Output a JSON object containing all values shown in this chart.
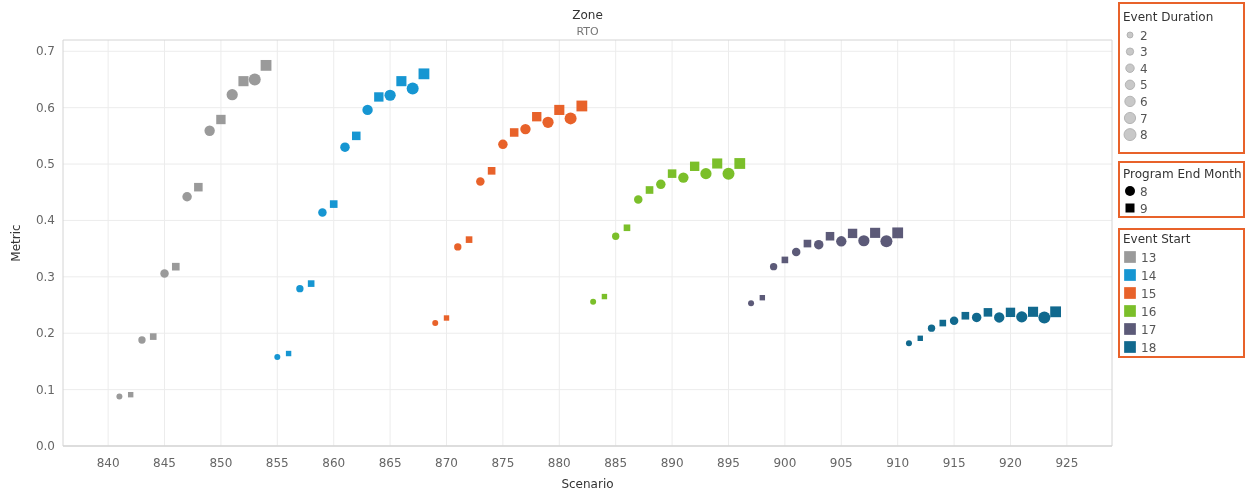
{
  "chart_data": {
    "type": "bubble",
    "title": "Zone",
    "subtitle": "RTO",
    "xlabel": "Scenario",
    "ylabel": "Metric",
    "legend_title": "Event Start",
    "annotations": [
      "Event Duration",
      "Program End Month",
      "8",
      "9"
    ],
    "xlim": [
      836,
      929
    ],
    "ylim": [
      0,
      0.72
    ],
    "xticks": [
      840,
      845,
      850,
      855,
      860,
      865,
      870,
      875,
      880,
      885,
      890,
      895,
      900,
      905,
      910,
      915,
      920,
      925
    ],
    "yticks": [
      {
        "value": 0,
        "label": "0.0"
      },
      0.1,
      0.2,
      0.3,
      0.4,
      0.5,
      0.6,
      0.7
    ],
    "grid": true,
    "legend": "right",
    "size_legend": [
      2,
      3,
      4,
      5,
      6,
      7,
      8
    ],
    "series": [
      {
        "color": "#9a9a9a",
        "marker": "circle",
        "x": [
          841,
          843,
          845,
          847,
          849,
          851,
          853
        ],
        "values": [
          0.088,
          0.188,
          0.306,
          0.442,
          0.559,
          0.623,
          0.65
        ],
        "sizes": [
          2,
          3,
          4,
          5,
          6,
          7,
          8
        ]
      },
      {
        "name": "13",
        "color": "#9a9a9a",
        "marker": "square",
        "x": [
          842,
          844,
          846,
          848,
          850,
          852,
          854
        ],
        "values": [
          0.091,
          0.194,
          0.318,
          0.459,
          0.579,
          0.647,
          0.675
        ],
        "sizes": [
          2,
          3,
          4,
          5,
          6,
          7,
          8
        ]
      },
      {
        "color": "#1696d2",
        "marker": "circle",
        "x": [
          855,
          857,
          859,
          861,
          863,
          865,
          867
        ],
        "values": [
          0.158,
          0.279,
          0.414,
          0.53,
          0.596,
          0.622,
          0.634
        ],
        "sizes": [
          2,
          3,
          4,
          5,
          6,
          7,
          8
        ]
      },
      {
        "name": "14",
        "color": "#1696d2",
        "marker": "square",
        "x": [
          856,
          858,
          860,
          862,
          864,
          866,
          868
        ],
        "values": [
          0.164,
          0.288,
          0.429,
          0.55,
          0.619,
          0.647,
          0.66
        ],
        "sizes": [
          2,
          3,
          4,
          5,
          6,
          7,
          8
        ]
      },
      {
        "color": "#e8622a",
        "marker": "circle",
        "x": [
          869,
          871,
          873,
          875,
          877,
          879,
          881
        ],
        "values": [
          0.218,
          0.353,
          0.469,
          0.535,
          0.562,
          0.574,
          0.581
        ],
        "sizes": [
          2,
          3,
          4,
          5,
          6,
          7,
          8
        ]
      },
      {
        "name": "15",
        "color": "#e8622a",
        "marker": "square",
        "x": [
          870,
          872,
          874,
          876,
          878,
          880,
          882
        ],
        "values": [
          0.227,
          0.366,
          0.488,
          0.556,
          0.584,
          0.596,
          0.603
        ],
        "sizes": [
          2,
          3,
          4,
          5,
          6,
          7,
          8
        ]
      },
      {
        "color": "#7bbf2a",
        "marker": "circle",
        "x": [
          883,
          885,
          887,
          889,
          891,
          893,
          895
        ],
        "values": [
          0.256,
          0.372,
          0.437,
          0.464,
          0.476,
          0.483,
          0.483
        ],
        "sizes": [
          2,
          3,
          4,
          5,
          6,
          7,
          8
        ]
      },
      {
        "name": "16",
        "color": "#7bbf2a",
        "marker": "square",
        "x": [
          884,
          886,
          888,
          890,
          892,
          894,
          896
        ],
        "values": [
          0.265,
          0.387,
          0.454,
          0.483,
          0.496,
          0.501,
          0.501
        ],
        "sizes": [
          2,
          3,
          4,
          5,
          6,
          7,
          8
        ]
      },
      {
        "color": "#5c5a78",
        "marker": "circle",
        "x": [
          897,
          899,
          901,
          903,
          905,
          907,
          909
        ],
        "values": [
          0.253,
          0.318,
          0.344,
          0.357,
          0.363,
          0.364,
          0.363
        ],
        "sizes": [
          2,
          3,
          4,
          5,
          6,
          7,
          8
        ]
      },
      {
        "name": "17",
        "color": "#5c5a78",
        "marker": "square",
        "x": [
          898,
          900,
          902,
          904,
          906,
          908,
          910
        ],
        "values": [
          0.263,
          0.33,
          0.359,
          0.372,
          0.377,
          0.378,
          0.378
        ],
        "sizes": [
          2,
          3,
          4,
          5,
          6,
          7,
          8
        ]
      },
      {
        "color": "#11698e",
        "marker": "circle",
        "x": [
          911,
          913,
          915,
          917,
          919,
          921,
          923
        ],
        "values": [
          0.182,
          0.209,
          0.222,
          0.228,
          0.228,
          0.229,
          0.228
        ],
        "sizes": [
          2,
          3,
          4,
          5,
          6,
          7,
          8
        ]
      },
      {
        "name": "18",
        "color": "#11698e",
        "marker": "square",
        "x": [
          912,
          914,
          916,
          918,
          920,
          922,
          924
        ],
        "values": [
          0.191,
          0.218,
          0.231,
          0.237,
          0.237,
          0.238,
          0.238
        ],
        "sizes": [
          2,
          3,
          4,
          5,
          6,
          7,
          8
        ]
      }
    ]
  }
}
